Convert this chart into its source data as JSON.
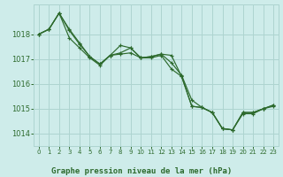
{
  "xlabel": "Graphe pression niveau de la mer (hPa)",
  "background_color": "#ceecea",
  "grid_color": "#aed4d0",
  "line_color": "#2d6a2d",
  "ylim": [
    1013.5,
    1019.2
  ],
  "xlim": [
    -0.5,
    23.5
  ],
  "yticks": [
    1014,
    1015,
    1016,
    1017,
    1018
  ],
  "xticks": [
    0,
    1,
    2,
    3,
    4,
    5,
    6,
    7,
    8,
    9,
    10,
    11,
    12,
    13,
    14,
    15,
    16,
    17,
    18,
    19,
    20,
    21,
    22,
    23
  ],
  "series": [
    [
      1018.0,
      1018.2,
      1018.85,
      1018.2,
      1017.65,
      1017.1,
      1016.8,
      1017.15,
      1017.55,
      1017.45,
      1017.05,
      1017.1,
      1017.2,
      1017.15,
      1016.3,
      1015.1,
      1015.05,
      1014.85,
      1014.2,
      1014.15,
      1014.85,
      1014.85,
      1015.0,
      1015.15
    ],
    [
      1018.0,
      1018.2,
      1018.85,
      1018.15,
      1017.6,
      1017.1,
      1016.8,
      1017.15,
      1017.25,
      1017.45,
      1017.05,
      1017.1,
      1017.2,
      1016.85,
      1016.35,
      1015.35,
      1015.05,
      1014.85,
      1014.2,
      1014.15,
      1014.85,
      1014.85,
      1015.0,
      1015.15
    ],
    [
      1018.0,
      1018.2,
      1018.85,
      1017.85,
      1017.45,
      1017.05,
      1016.75,
      1017.15,
      1017.2,
      1017.25,
      1017.05,
      1017.05,
      1017.15,
      1016.6,
      1016.3,
      1015.1,
      1015.05,
      1014.85,
      1014.2,
      1014.15,
      1014.8,
      1014.8,
      1015.0,
      1015.1
    ]
  ]
}
